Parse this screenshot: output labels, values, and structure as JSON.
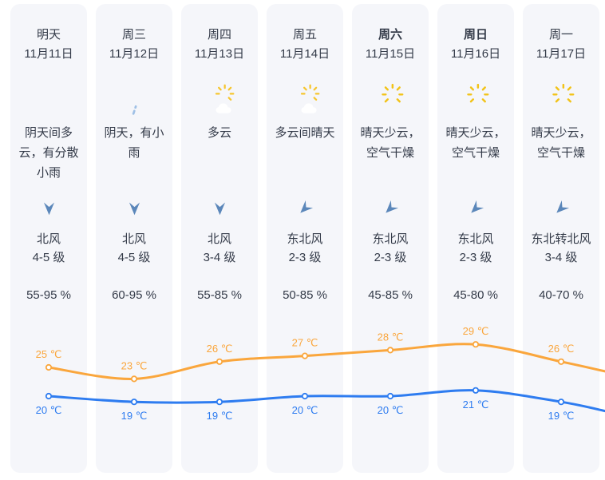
{
  "page": {
    "background_color": "#ffffff",
    "card_color": "#f5f6fa",
    "text_color": "#343b49",
    "wind_arrow_color": "#5b87ba",
    "high_temp_color": "#faa63c",
    "low_temp_color": "#2e7cf0"
  },
  "days": [
    {
      "title": "明天",
      "date": "11月11日",
      "bold": false,
      "icon": "overcast",
      "desc": "阴天间多云，有分散小雨",
      "wind_arrow": "arrow-south",
      "wind_dir": "北风",
      "wind_level": "4-5 级",
      "humidity": "55-95 %"
    },
    {
      "title": "周三",
      "date": "11月12日",
      "bold": false,
      "icon": "light-rain",
      "desc": "阴天，有小雨",
      "wind_arrow": "arrow-south",
      "wind_dir": "北风",
      "wind_level": "4-5 级",
      "humidity": "60-95 %"
    },
    {
      "title": "周四",
      "date": "11月13日",
      "bold": false,
      "icon": "partly-cloudy",
      "desc": "多云",
      "wind_arrow": "arrow-south",
      "wind_dir": "北风",
      "wind_level": "3-4 级",
      "humidity": "55-85 %"
    },
    {
      "title": "周五",
      "date": "11月14日",
      "bold": false,
      "icon": "partly-cloudy",
      "desc": "多云间晴天",
      "wind_arrow": "arrow-southwest",
      "wind_dir": "东北风",
      "wind_level": "2-3 级",
      "humidity": "50-85 %"
    },
    {
      "title": "周六",
      "date": "11月15日",
      "bold": true,
      "icon": "sunny-cloud",
      "desc": "晴天少云，空气干燥",
      "wind_arrow": "arrow-southwest",
      "wind_dir": "东北风",
      "wind_level": "2-3 级",
      "humidity": "45-85 %"
    },
    {
      "title": "周日",
      "date": "11月16日",
      "bold": true,
      "icon": "sunny-cloud",
      "desc": "晴天少云，空气干燥",
      "wind_arrow": "arrow-southwest",
      "wind_dir": "东北风",
      "wind_level": "2-3 级",
      "humidity": "45-80 %"
    },
    {
      "title": "周一",
      "date": "11月17日",
      "bold": false,
      "icon": "sunny-cloud",
      "desc": "晴天少云，空气干燥",
      "wind_arrow": "arrow-southwest",
      "wind_dir": "东北转北风",
      "wind_level": "3-4 级",
      "humidity": "40-70 %"
    }
  ],
  "chart_data": {
    "type": "line",
    "categories": [
      "明天 11月11日",
      "周三 11月12日",
      "周四 11月13日",
      "周五 11月14日",
      "周六 11月15日",
      "周日 11月16日",
      "周一 11月17日"
    ],
    "series": [
      {
        "name": "high_temp",
        "color": "#faa63c",
        "values": [
          25,
          23,
          26,
          27,
          28,
          29,
          26
        ]
      },
      {
        "name": "low_temp",
        "color": "#2e7cf0",
        "values": [
          20,
          19,
          19,
          20,
          20,
          21,
          19
        ]
      }
    ],
    "unit": "℃",
    "point_labels": true,
    "grid": false,
    "legend": "none",
    "ylim": [
      17,
      31
    ]
  }
}
